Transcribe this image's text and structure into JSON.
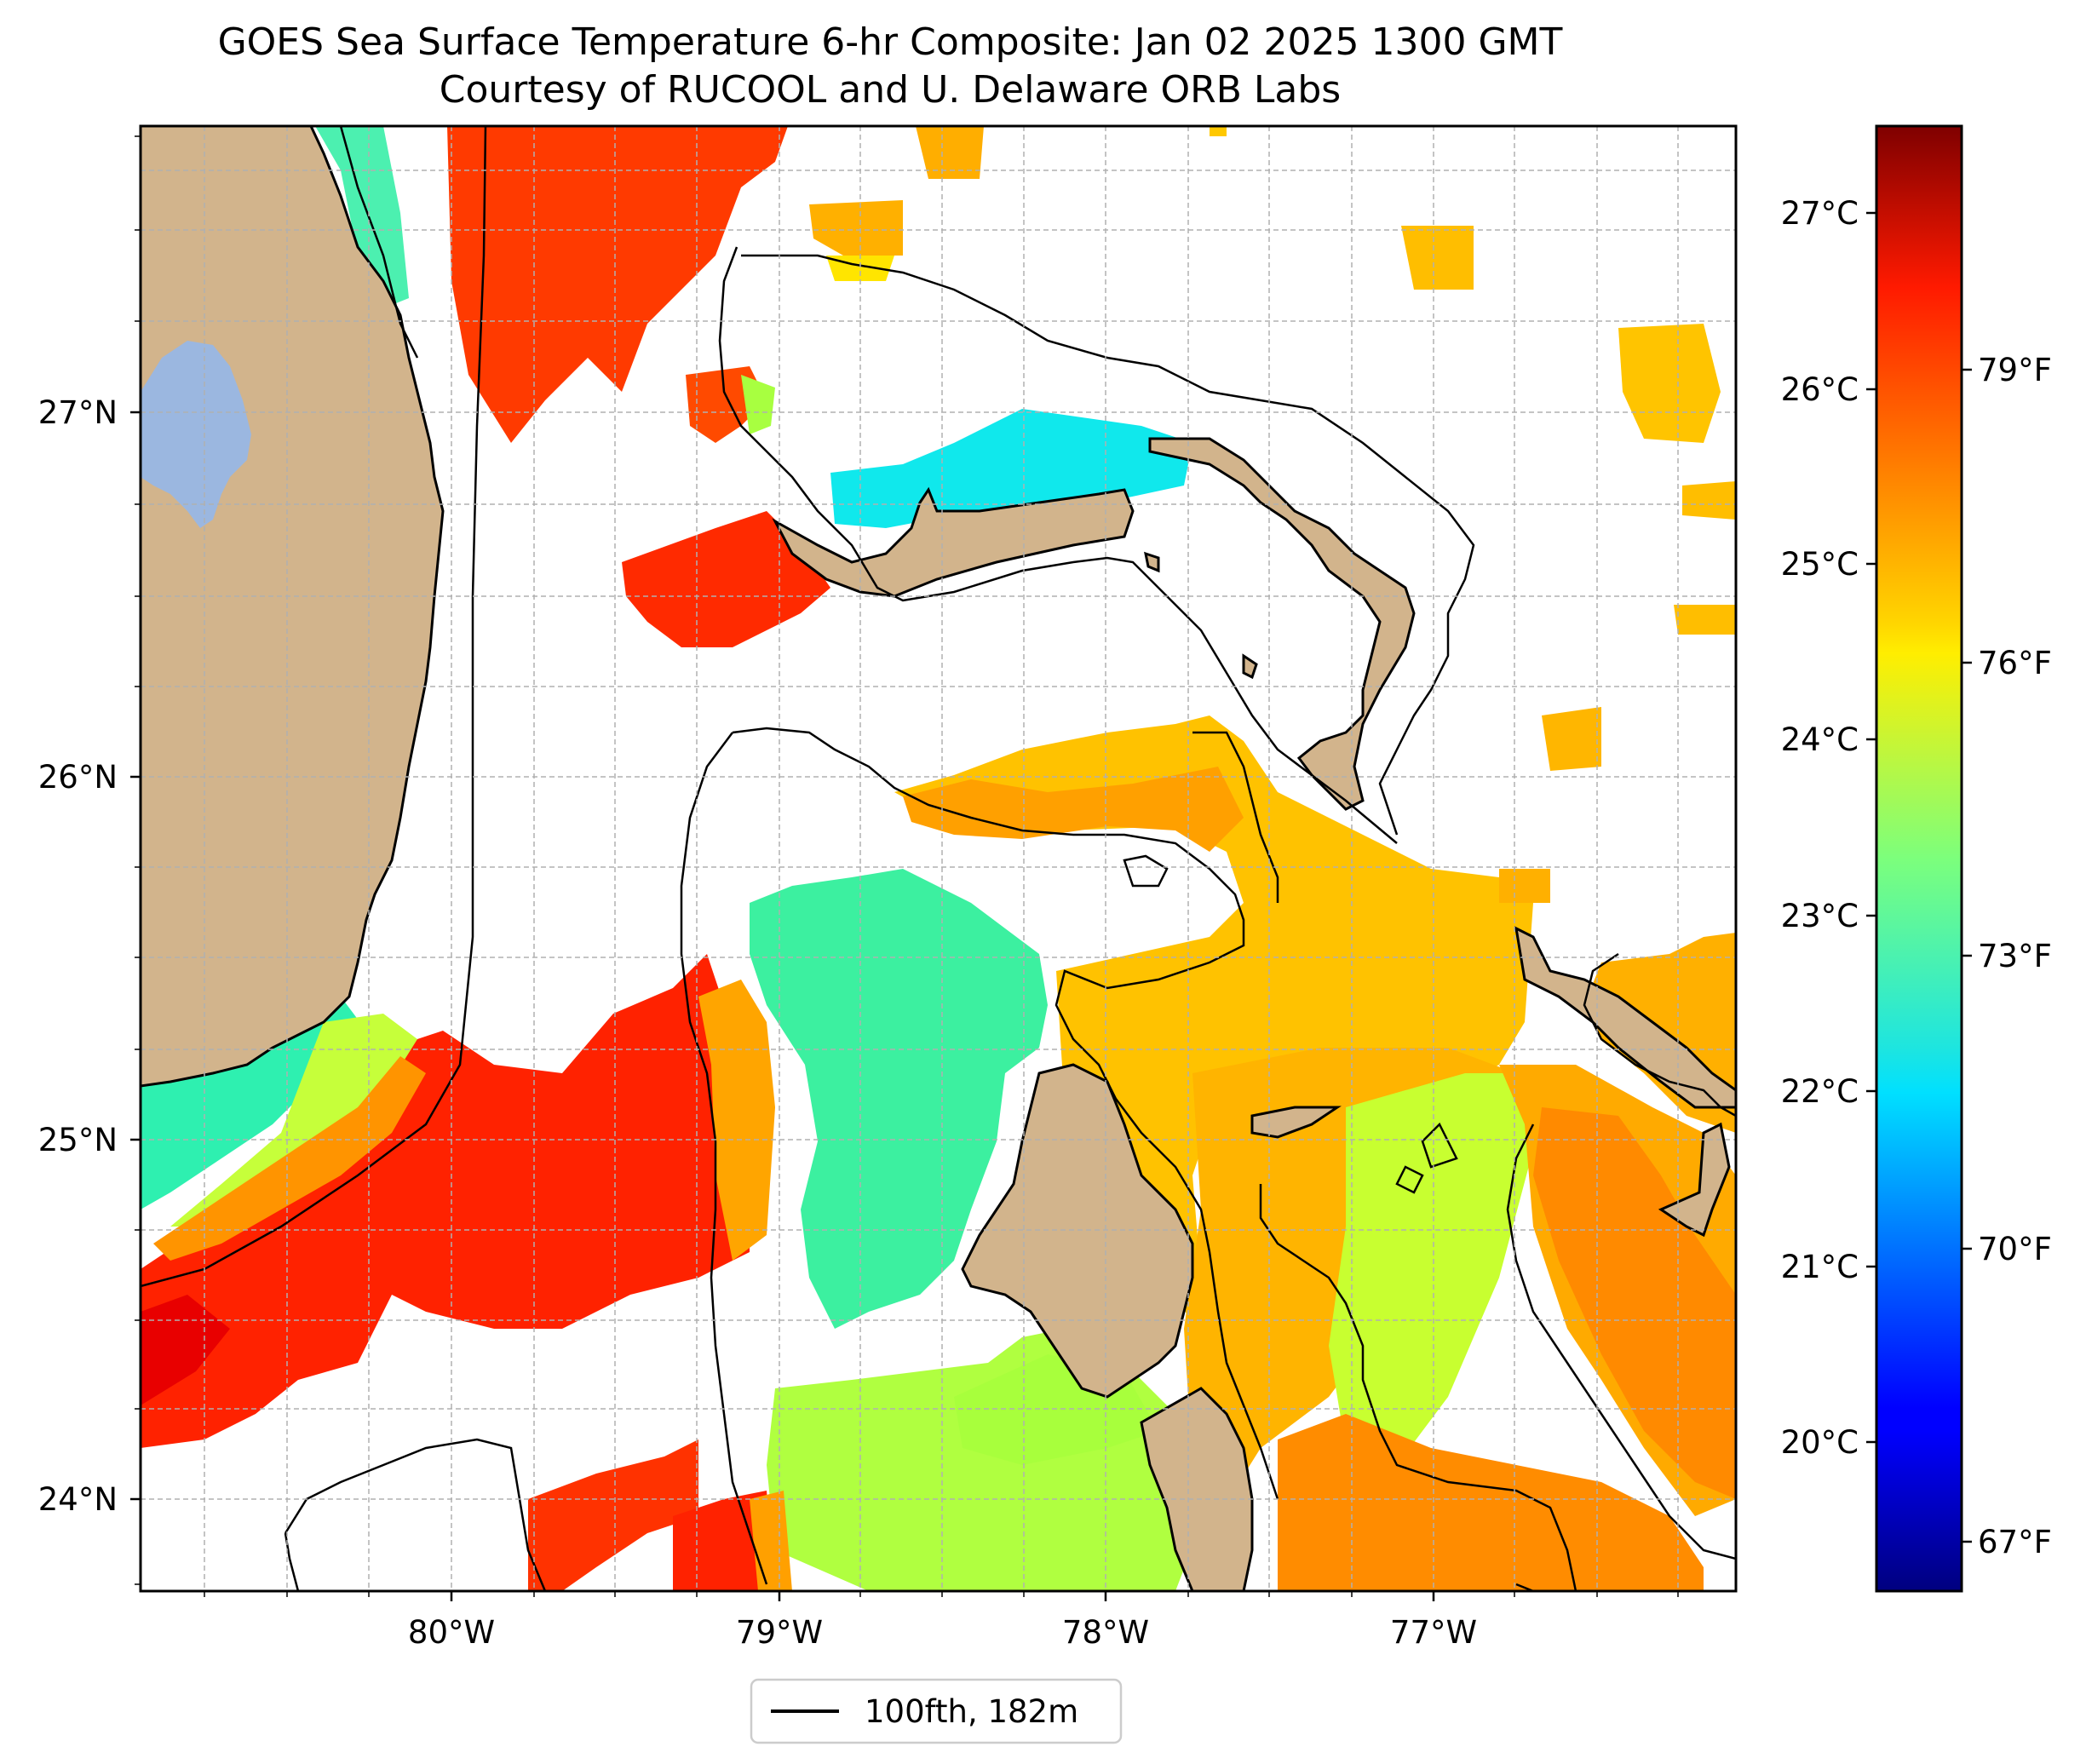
{
  "title": "GOES Sea Surface Temperature 6-hr Composite: Jan 02 2025 1300 GMT",
  "subtitle": "Courtesy of RUCOOL and U. Delaware ORB Labs",
  "lat_ticks": [
    "27°N",
    "26°N",
    "25°N",
    "24°N"
  ],
  "lon_ticks": [
    "80°W",
    "79°W",
    "78°W",
    "77°W"
  ],
  "colorbar": {
    "colormap": "jet",
    "celsius_ticks": [
      "27°C",
      "26°C",
      "25°C",
      "24°C",
      "23°C",
      "22°C",
      "21°C",
      "20°C"
    ],
    "fahrenheit_ticks": [
      "79°F",
      "76°F",
      "73°F",
      "70°F",
      "67°F"
    ]
  },
  "legend": {
    "label": "100fth, 182m"
  },
  "colors": {
    "land": "#d2b48c",
    "lake": "#9bb7e0",
    "grid": "#b0b0b0"
  }
}
